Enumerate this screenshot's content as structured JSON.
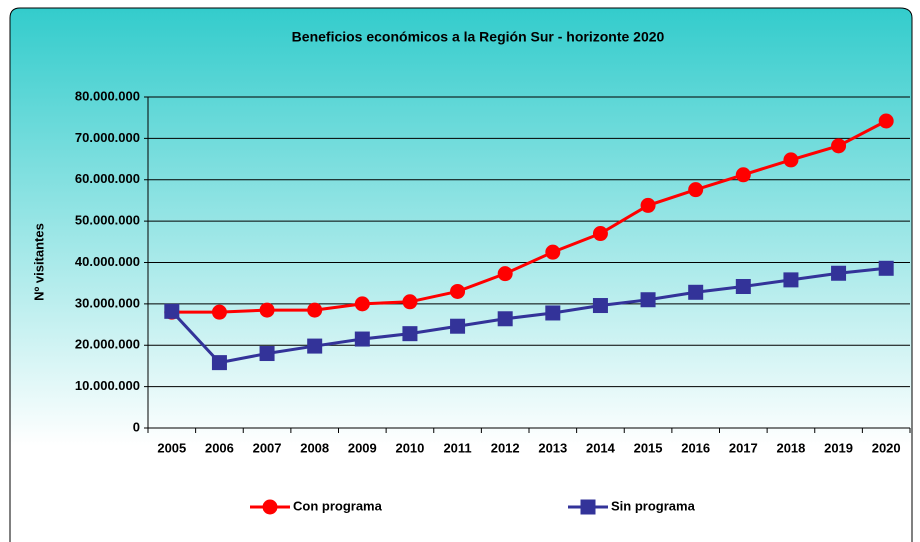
{
  "chart_data": {
    "type": "line",
    "title": "Beneficios económicos a la Región Sur - horizonte 2020",
    "y_label": "Nº visitantes",
    "categories": [
      "2005",
      "2006",
      "2007",
      "2008",
      "2009",
      "2010",
      "2011",
      "2012",
      "2013",
      "2014",
      "2015",
      "2016",
      "2017",
      "2018",
      "2019",
      "2020"
    ],
    "series": [
      {
        "name": "Con programa",
        "color": "#ff0000",
        "marker": "circle",
        "values": [
          28000000,
          28000000,
          28500000,
          28500000,
          30000000,
          30500000,
          33000000,
          37300000,
          42500000,
          47000000,
          53800000,
          57600000,
          61200000,
          64800000,
          68200000,
          74200000
        ]
      },
      {
        "name": "Sin programa",
        "color": "#333399",
        "marker": "square",
        "values": [
          28200000,
          15800000,
          18000000,
          19800000,
          21500000,
          22800000,
          24600000,
          26400000,
          27800000,
          29600000,
          31000000,
          32800000,
          34200000,
          35800000,
          37400000,
          38600000
        ]
      }
    ],
    "ylim": [
      0,
      80000000
    ],
    "yticks": [
      0,
      {
        "value": 10000000,
        "label": "10.000.000"
      },
      {
        "value": 20000000,
        "label": "20.000.000"
      },
      {
        "value": 30000000,
        "label": "30.000.000"
      },
      {
        "value": 40000000,
        "label": "40.000.000"
      },
      {
        "value": 50000000,
        "label": "50.000.000"
      },
      {
        "value": 60000000,
        "label": "60.000.000"
      },
      {
        "value": 70000000,
        "label": "70.000.000"
      },
      {
        "value": 80000000,
        "label": "80.000.000"
      }
    ],
    "grid": true,
    "legend": "bottom"
  }
}
